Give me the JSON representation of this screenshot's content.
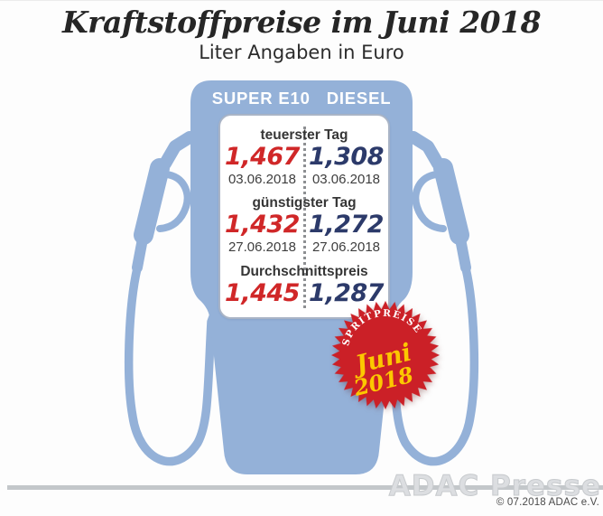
{
  "header": {
    "title": "Kraftstoffpreise im Juni 2018",
    "subtitle": "Liter Angaben in Euro"
  },
  "pump": {
    "columns": [
      "SUPER E10",
      "DIESEL"
    ],
    "sections": [
      {
        "label": "teuerster Tag",
        "super_price": "1,467",
        "super_date": "03.06.2018",
        "diesel_price": "1,308",
        "diesel_date": "03.06.2018"
      },
      {
        "label": "günstigster Tag",
        "super_price": "1,432",
        "super_date": "27.06.2018",
        "diesel_price": "1,272",
        "diesel_date": "27.06.2018"
      },
      {
        "label": "Durchschnittspreis",
        "super_price": "1,445",
        "diesel_price": "1,287"
      }
    ]
  },
  "badge": {
    "arc_text": "SPRITPREISE",
    "line1": "Juni",
    "line2": "2018"
  },
  "footer": {
    "watermark": "ADAC Presse",
    "copyright": "© 07.2018 ADAC e.V."
  },
  "colors": {
    "pump_blue": "#94b1d8",
    "super_e10_price": "#d02728",
    "diesel_price": "#2c3a6a",
    "badge_red": "#cb2027",
    "badge_yellow": "#fcc800",
    "footer_line_gray": "#c3c7ca"
  },
  "chart_data": {
    "type": "table",
    "title": "Kraftstoffpreise im Juni 2018",
    "subtitle": "Liter Angaben in Euro",
    "unit": "Euro pro Liter",
    "columns": [
      "SUPER E10",
      "DIESEL"
    ],
    "rows": [
      {
        "label": "teuerster Tag",
        "super_e10": 1.467,
        "diesel": 1.308,
        "super_e10_date": "03.06.2018",
        "diesel_date": "03.06.2018"
      },
      {
        "label": "günstigster Tag",
        "super_e10": 1.432,
        "diesel": 1.272,
        "super_e10_date": "27.06.2018",
        "diesel_date": "27.06.2018"
      },
      {
        "label": "Durchschnittspreis",
        "super_e10": 1.445,
        "diesel": 1.287
      }
    ]
  }
}
